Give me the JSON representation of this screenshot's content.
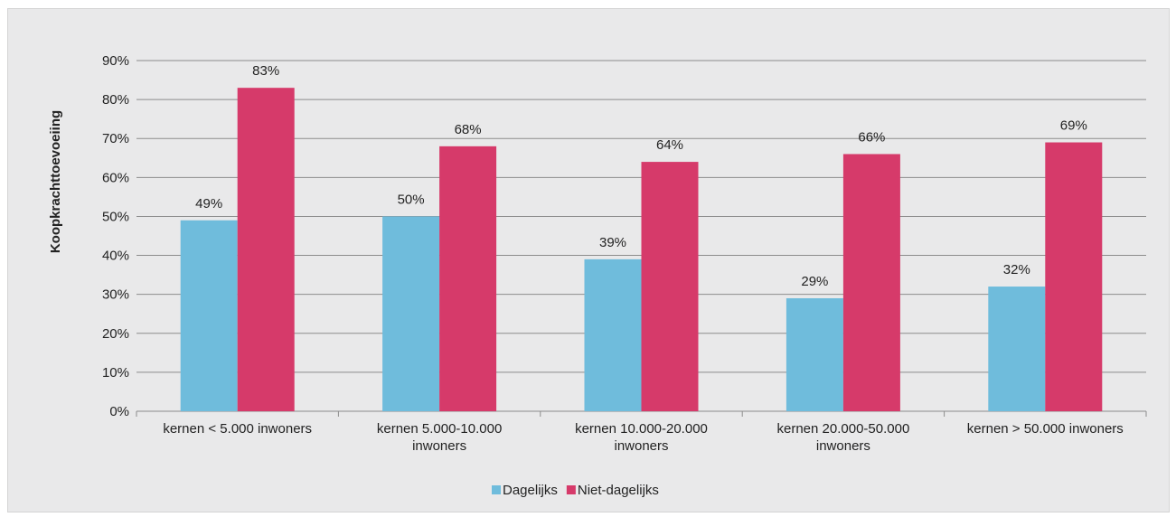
{
  "chart_data": {
    "type": "bar",
    "title": "",
    "xlabel": "",
    "ylabel": "Koopkrachttoevoeiing",
    "ylim": [
      0,
      90
    ],
    "yticks": [
      "0%",
      "10%",
      "20%",
      "30%",
      "40%",
      "50%",
      "60%",
      "70%",
      "80%",
      "90%"
    ],
    "categories": [
      [
        "kernen < 5.000 inwoners"
      ],
      [
        "kernen 5.000-10.000",
        "inwoners"
      ],
      [
        "kernen 10.000-20.000",
        "inwoners"
      ],
      [
        "kernen 20.000-50.000",
        "inwoners"
      ],
      [
        "kernen > 50.000 inwoners"
      ]
    ],
    "series": [
      {
        "name": "Dagelijks",
        "color": "#6fbcdc",
        "values": [
          49,
          50,
          39,
          29,
          32
        ],
        "labels": [
          "49%",
          "50%",
          "39%",
          "29%",
          "32%"
        ]
      },
      {
        "name": "Niet-dagelijks",
        "color": "#d63a6a",
        "values": [
          83,
          68,
          64,
          66,
          69
        ],
        "labels": [
          "83%",
          "68%",
          "64%",
          "66%",
          "69%"
        ]
      }
    ],
    "grid": true,
    "legend": "bottom-center"
  }
}
